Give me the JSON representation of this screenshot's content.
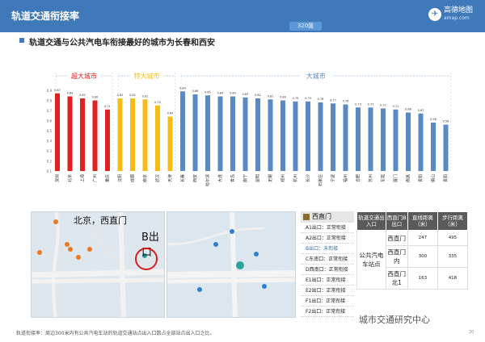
{
  "header": {
    "title": "轨道交通衔接率",
    "badge": "320盤",
    "logo_name": "高德地图",
    "logo_url": "amap.com"
  },
  "subtitle": "轨道交通与公共汽电车衔接最好的城市为长春和西安",
  "chart_data": {
    "type": "bar",
    "categories": [
      "深圳",
      "北京",
      "上海",
      "广州",
      "重庆",
      "沈阳",
      "成都",
      "南京",
      "武汉",
      "天津",
      "长春",
      "西安",
      "哈尔滨",
      "大连",
      "青岛",
      "南宁",
      "昆明",
      "无锡",
      "郑州",
      "杭州",
      "长沙",
      "石家庄",
      "宁波",
      "福州",
      "合肥",
      "苏州",
      "东莞",
      "厦门",
      "南昌",
      "贵阳",
      "佛山",
      "贵阳"
    ],
    "values": [
      0.87,
      0.84,
      0.82,
      0.8,
      0.71,
      0.82,
      0.82,
      0.81,
      0.75,
      0.64,
      0.89,
      0.86,
      0.85,
      0.84,
      0.84,
      0.83,
      0.82,
      0.81,
      0.8,
      0.79,
      0.79,
      0.78,
      0.77,
      0.76,
      0.73,
      0.73,
      0.72,
      0.71,
      0.68,
      0.67,
      0.58,
      0.56
    ],
    "value_labels": [
      "0.87",
      "0.84",
      "0.82",
      "0.80",
      "0.71",
      "0.82",
      "0.82",
      "0.81",
      "0.75",
      "0.64",
      "0.89",
      "0.86",
      "0.85",
      "0.84",
      "0.84",
      "0.83",
      "0.82",
      "0.81",
      "0.80",
      "0.79",
      "0.79",
      "0.78",
      "0.77",
      "0.76",
      "0.73",
      "0.73",
      "0.72",
      "0.71",
      "0.68",
      "0.67",
      "0.58",
      "0.56"
    ],
    "groups": [
      {
        "name": "超大城市",
        "start": 0,
        "end": 4,
        "color": "#e0211f"
      },
      {
        "name": "特大城市",
        "start": 5,
        "end": 9,
        "color": "#f6bd16"
      },
      {
        "name": "大城市",
        "start": 10,
        "end": 31,
        "color": "#5a8ac6"
      }
    ],
    "ylim": [
      0.1,
      0.9
    ],
    "yticks": [
      "0.9",
      "0.8",
      "0.7",
      "0.6",
      "0.5",
      "0.4",
      "0.3",
      "0.2",
      "0.1"
    ]
  },
  "map_left": {
    "city": "北京，西直门",
    "exit": "B出口"
  },
  "legend": {
    "title": "西直门",
    "items": [
      "A1出口：正常衔接",
      "A2出口：正常衔接",
      "B出口：未衔接",
      "C东南口：正常衔接",
      "D西南口：正常衔接",
      "E1出口：正常衔接",
      "E2出口：正常衔接",
      "F1出口：正常衔接",
      "F2出口：正常衔接"
    ]
  },
  "table": {
    "headers": [
      "轨道交通出入口",
      "西直门B出口",
      "直线距离（米）",
      "步行距离（米）"
    ],
    "group_label": "公共汽电车站点",
    "rows": [
      {
        "name": "西直门",
        "d1": "247",
        "d2": "495"
      },
      {
        "name": "西直门内",
        "d1": "300",
        "d2": "335"
      },
      {
        "name": "西直门北1",
        "d1": "163",
        "d2": "418"
      }
    ]
  },
  "footnote": "轨道衔接率：周边300米内有公共汽电车站的轨道交通站点出入口数占全部站点出入口之比。",
  "watermark": "城市交通研究中心",
  "page_number": "20"
}
